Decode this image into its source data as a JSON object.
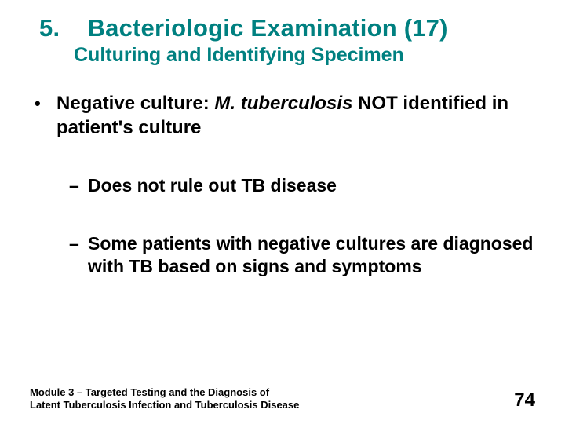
{
  "title": {
    "number": "5.",
    "main": "Bacteriologic Examination (17)",
    "subtitle": "Culturing and Identifying Specimen",
    "color": "#008080",
    "title_fontsize": 31,
    "subtitle_fontsize": 25
  },
  "body": {
    "text_color": "#000000",
    "l1_fontsize": 24,
    "l2_fontsize": 23,
    "bullet_l1": {
      "marker": "•",
      "pre": "Negative culture:  ",
      "italic": "M. tuberculosis",
      "post": " NOT identified in patient's culture"
    },
    "bullet_l2a": {
      "marker": "–",
      "text": "Does not rule out TB disease"
    },
    "bullet_l2b": {
      "marker": "–",
      "text": "Some patients with negative cultures are diagnosed with TB based on signs and symptoms"
    }
  },
  "footer": {
    "module_line1": "Module 3 – Targeted Testing and the Diagnosis of",
    "module_line2": "Latent Tuberculosis Infection and Tuberculosis Disease",
    "page_number": "74",
    "footer_fontsize": 13,
    "page_fontsize": 24
  },
  "background_color": "#ffffff"
}
